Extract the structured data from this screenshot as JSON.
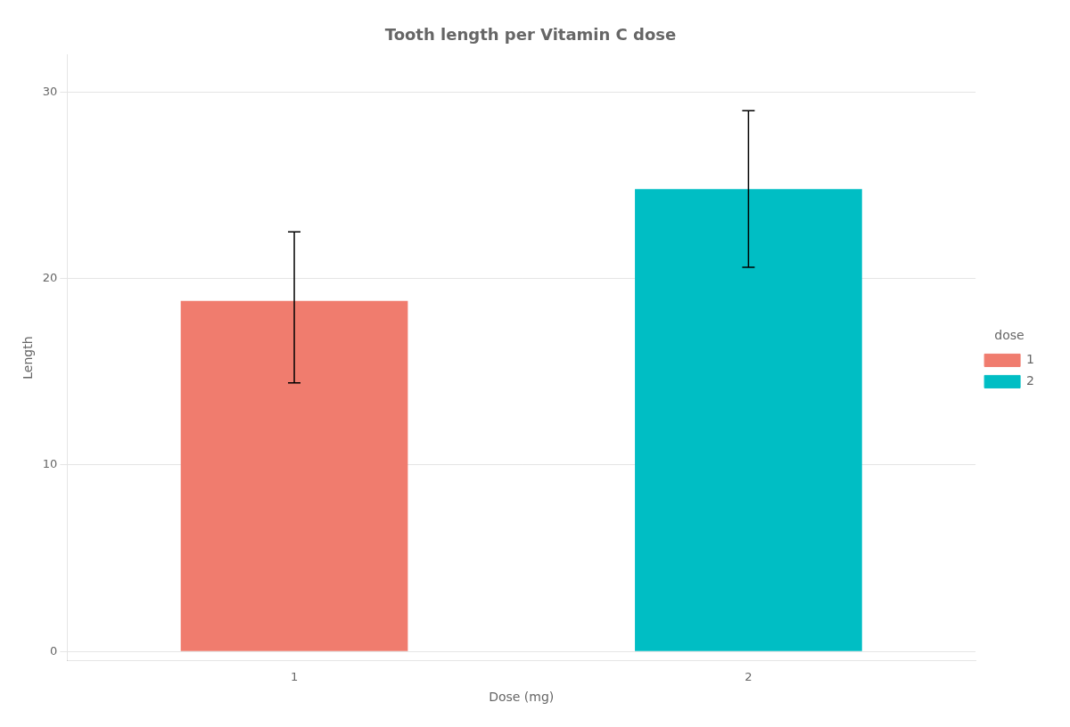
{
  "chart_data": {
    "type": "bar",
    "title": "Tooth length per Vitamin C dose",
    "xlabel": "Dose (mg)",
    "ylabel": "Length",
    "categories": [
      1,
      2
    ],
    "values": [
      18.8,
      24.8
    ],
    "error_lower": [
      14.4,
      20.6
    ],
    "error_upper": [
      22.5,
      29.0
    ],
    "colors": [
      "#F07C6E",
      "#00BEC4"
    ],
    "ylim": [
      -0.5,
      32
    ],
    "yticks": [
      0,
      10,
      20,
      30
    ],
    "grid": true,
    "legend": "right",
    "legend_title": "dose",
    "legend_labels": [
      "1",
      "2"
    ]
  }
}
